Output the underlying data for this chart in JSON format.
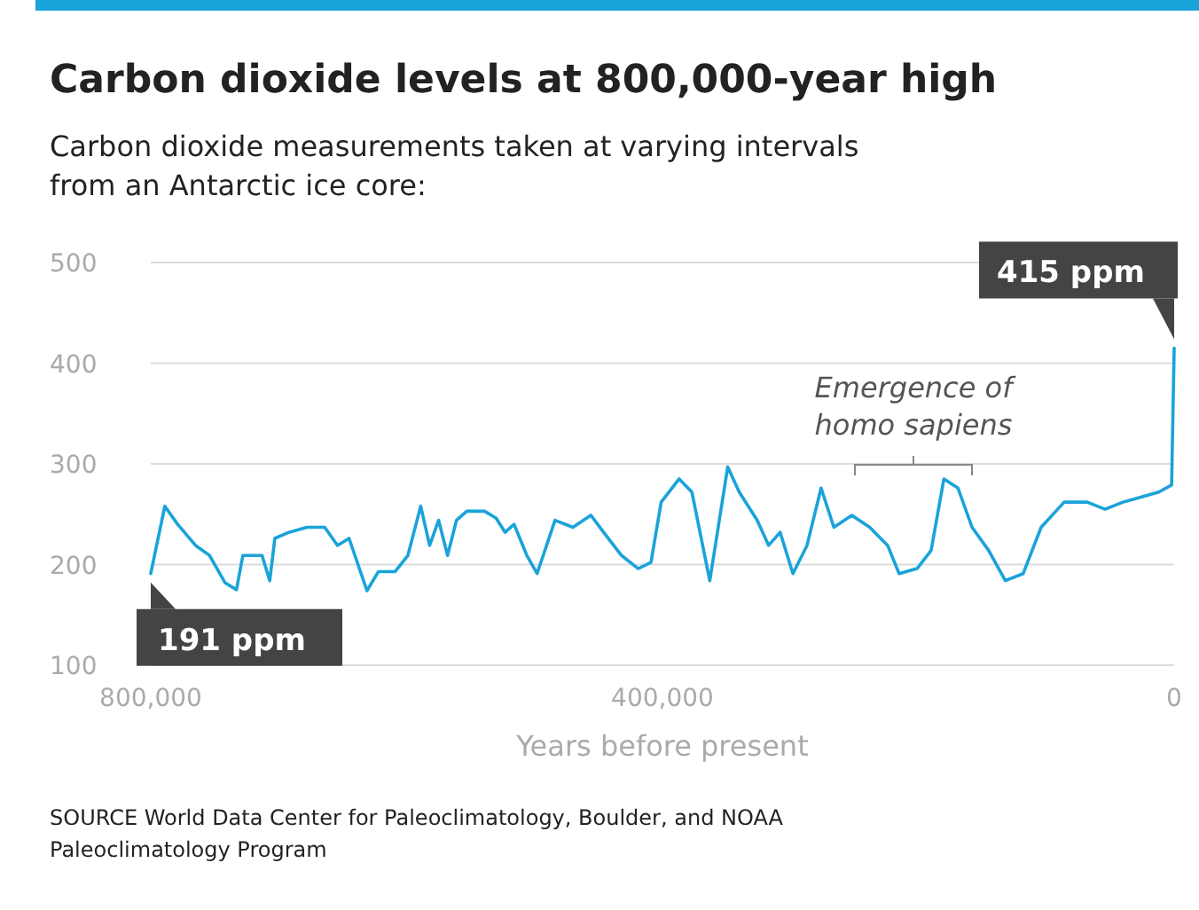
{
  "chart_data": {
    "type": "line",
    "title": "Carbon dioxide levels at 800,000-year high",
    "subtitle": "Carbon dioxide measurements taken at varying intervals from an Antarctic ice core:",
    "xlabel": "Years before present",
    "x": [
      800000,
      789000,
      779000,
      765000,
      754000,
      742000,
      733000,
      728000,
      713000,
      707000,
      703000,
      692000,
      678000,
      664000,
      654000,
      645000,
      631000,
      622000,
      609000,
      599000,
      589000,
      582000,
      575000,
      568000,
      561000,
      553000,
      539000,
      530000,
      523000,
      516000,
      506000,
      498000,
      484000,
      470000,
      456000,
      446000,
      432000,
      419000,
      409000,
      401000,
      387000,
      377000,
      363000,
      349000,
      340000,
      326000,
      317000,
      308000,
      298000,
      287000,
      276000,
      266000,
      252000,
      238000,
      224000,
      215000,
      201000,
      190000,
      180000,
      169000,
      158000,
      145000,
      132000,
      118000,
      104000,
      86000,
      68000,
      54000,
      40000,
      26000,
      12000,
      2000,
      0
    ],
    "series": [
      {
        "color": "#1aa3d9",
        "values": [
          191,
          258,
          240,
          219,
          209,
          182,
          175,
          209,
          209,
          184,
          226,
          232,
          237,
          237,
          219,
          226,
          174,
          193,
          193,
          209,
          258,
          219,
          244,
          209,
          244,
          253,
          253,
          246,
          232,
          240,
          209,
          191,
          244,
          237,
          249,
          232,
          209,
          196,
          202,
          262,
          285,
          272,
          184,
          297,
          272,
          244,
          219,
          232,
          191,
          219,
          276,
          237,
          249,
          237,
          219,
          191,
          196,
          214,
          285,
          276,
          237,
          214,
          184,
          191,
          237,
          262,
          262,
          255,
          262,
          267,
          272,
          279,
          415
        ]
      }
    ],
    "xlim": [
      800000,
      0
    ],
    "xticks": [
      {
        "value": 800000,
        "label": "800,000"
      },
      {
        "value": 400000,
        "label": "400,000"
      },
      0
    ],
    "ylim": [
      100,
      500
    ],
    "yticks": [
      100,
      200,
      300,
      400,
      500
    ],
    "grid": "y",
    "line_style": "solid",
    "marker": "none",
    "annotations": [
      {
        "text": "191 ppm",
        "x": 800000,
        "y": 191
      },
      {
        "text": "415 ppm",
        "x": 0,
        "y": 415
      },
      "Emergence of homo sapiens",
      "SOURCE World Data Center for Paleoclimatology, Boulder, and NOAA Paleoclimatology Program"
    ]
  }
}
